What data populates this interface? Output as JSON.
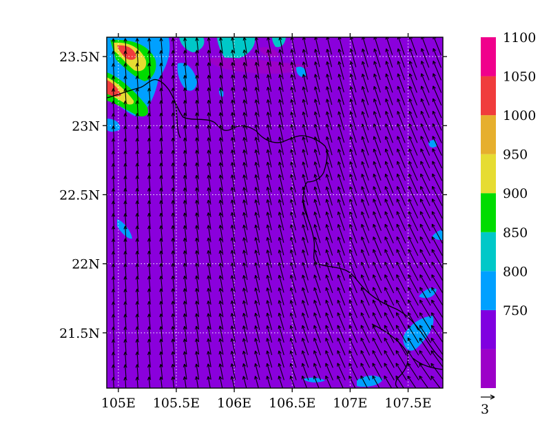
{
  "map": {
    "lat_ticks": [
      {
        "value": 23.5,
        "label": "23.5N"
      },
      {
        "value": 23.0,
        "label": "23N"
      },
      {
        "value": 22.5,
        "label": "22.5N"
      },
      {
        "value": 22.0,
        "label": "22N"
      },
      {
        "value": 21.5,
        "label": "21.5N"
      }
    ],
    "lon_ticks": [
      {
        "value": 105.0,
        "label": "105E"
      },
      {
        "value": 105.5,
        "label": "105.5E"
      },
      {
        "value": 106.0,
        "label": "106E"
      },
      {
        "value": 106.5,
        "label": "106.5E"
      },
      {
        "value": 107.0,
        "label": "107E"
      },
      {
        "value": 107.5,
        "label": "107.5E"
      }
    ],
    "lon_range": [
      104.9,
      107.8
    ],
    "lat_range": [
      21.1,
      23.64
    ],
    "background_color": "#8a00dc",
    "gridlines": "dotted",
    "vector_reference": {
      "label": "3",
      "magnitude": 3
    }
  },
  "colorbar": {
    "levels": [
      {
        "label": "",
        "color": "#9c00c8"
      },
      {
        "label": "750",
        "color": "#8000e0"
      },
      {
        "label": "800",
        "color": "#00a0ff"
      },
      {
        "label": "850",
        "color": "#00c8c8"
      },
      {
        "label": "900",
        "color": "#00dc00"
      },
      {
        "label": "950",
        "color": "#e6dc32"
      },
      {
        "label": "1000",
        "color": "#e6af2d"
      },
      {
        "label": "1050",
        "color": "#f03c3c"
      },
      {
        "label": "1100",
        "color": "#f0008c"
      }
    ]
  }
}
